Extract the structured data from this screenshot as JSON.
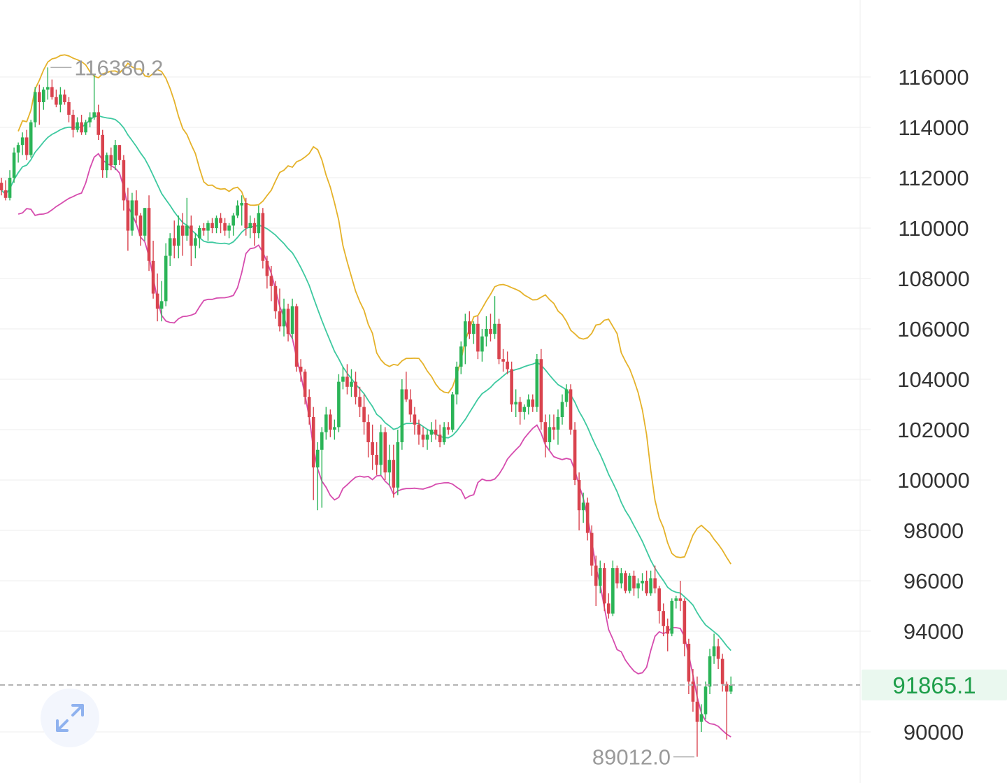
{
  "chart_data": {
    "type": "candlestick",
    "y_axis": {
      "position": "right",
      "ticks": [
        116000,
        114000,
        112000,
        110000,
        108000,
        106000,
        104000,
        102000,
        100000,
        98000,
        96000,
        94000,
        90000
      ],
      "ylim": [
        88300,
        118300
      ]
    },
    "high_label": "116380.2",
    "high_value": 116380.2,
    "low_label": "89012.0",
    "low_value": 89012.0,
    "last_price_label": "91865.1",
    "last_price": 91865.1,
    "colors": {
      "up": "#2bb457",
      "down": "#d9434e",
      "upper_band": "#e5b22a",
      "middle_band": "#3ec9a0",
      "lower_band": "#d64cae",
      "last_price_bg": "#eaf8ef",
      "last_price_text": "#1e9e4a"
    },
    "candles": [
      [
        111800,
        112000,
        111300,
        111500
      ],
      [
        111500,
        111900,
        111100,
        111200
      ],
      [
        111200,
        112300,
        111100,
        112000
      ],
      [
        112000,
        113200,
        111800,
        113000
      ],
      [
        113000,
        113400,
        112600,
        113300
      ],
      [
        113300,
        113800,
        112900,
        113600
      ],
      [
        113600,
        113900,
        112700,
        112900
      ],
      [
        112900,
        114300,
        112800,
        114200
      ],
      [
        114200,
        115600,
        114000,
        115400
      ],
      [
        115400,
        115700,
        114100,
        115000
      ],
      [
        115000,
        115600,
        114700,
        115500
      ],
      [
        115500,
        116380.2,
        115100,
        115600
      ],
      [
        115600,
        115900,
        115100,
        115200
      ],
      [
        115200,
        115500,
        114800,
        114900
      ],
      [
        114900,
        115600,
        114600,
        115300
      ],
      [
        115300,
        115500,
        114900,
        115000
      ],
      [
        115000,
        115200,
        114200,
        114500
      ],
      [
        114500,
        114700,
        113600,
        113900
      ],
      [
        113900,
        114400,
        113800,
        114200
      ],
      [
        114200,
        114500,
        113700,
        113800
      ],
      [
        113800,
        114300,
        113700,
        114200
      ],
      [
        114200,
        114600,
        114000,
        114400
      ],
      [
        114400,
        116100,
        114300,
        114600
      ],
      [
        114600,
        114900,
        113500,
        113700
      ],
      [
        113700,
        113900,
        112000,
        112300
      ],
      [
        112300,
        113000,
        112000,
        112900
      ],
      [
        112900,
        113200,
        112300,
        112500
      ],
      [
        112500,
        113500,
        112300,
        113300
      ],
      [
        113300,
        113300,
        112500,
        112700
      ],
      [
        112700,
        112900,
        110700,
        111100
      ],
      [
        111100,
        111600,
        109100,
        109900
      ],
      [
        109900,
        111400,
        109700,
        111100
      ],
      [
        111100,
        111500,
        110200,
        110500
      ],
      [
        110500,
        110600,
        109300,
        109700
      ],
      [
        109700,
        110800,
        109500,
        110800
      ],
      [
        110800,
        111300,
        108300,
        108700
      ],
      [
        108700,
        109500,
        107200,
        107400
      ],
      [
        107400,
        108200,
        106300,
        106800
      ],
      [
        106800,
        107900,
        106300,
        107100
      ],
      [
        107100,
        109400,
        106900,
        108900
      ],
      [
        108900,
        109800,
        108500,
        109600
      ],
      [
        109600,
        110300,
        108800,
        109300
      ],
      [
        109300,
        110500,
        108800,
        110100
      ],
      [
        110100,
        110600,
        108900,
        109700
      ],
      [
        109700,
        111200,
        109500,
        110100
      ],
      [
        110100,
        110500,
        108500,
        109300
      ],
      [
        109300,
        109800,
        108800,
        109600
      ],
      [
        109600,
        110100,
        109200,
        110000
      ],
      [
        110000,
        110200,
        109700,
        109900
      ],
      [
        109900,
        110300,
        109500,
        110200
      ],
      [
        110200,
        110400,
        109800,
        110000
      ],
      [
        110000,
        110500,
        109800,
        110400
      ],
      [
        110400,
        110600,
        109800,
        110200
      ],
      [
        110200,
        110400,
        109700,
        109900
      ],
      [
        109900,
        110200,
        109600,
        110100
      ],
      [
        110100,
        110600,
        109700,
        110500
      ],
      [
        110500,
        111100,
        110400,
        110900
      ],
      [
        110900,
        111300,
        110100,
        111000
      ],
      [
        111000,
        111200,
        109700,
        110000
      ],
      [
        110000,
        110500,
        109600,
        110200
      ],
      [
        110200,
        110400,
        109300,
        109800
      ],
      [
        109800,
        110900,
        109600,
        110600
      ],
      [
        110600,
        110800,
        108400,
        108700
      ],
      [
        108700,
        108900,
        107600,
        108100
      ],
      [
        108100,
        108500,
        107100,
        107700
      ],
      [
        107700,
        107900,
        106400,
        106700
      ],
      [
        106700,
        107600,
        105900,
        106100
      ],
      [
        106100,
        107200,
        105700,
        106800
      ],
      [
        106800,
        107000,
        105500,
        105800
      ],
      [
        105800,
        107200,
        105600,
        106900
      ],
      [
        106900,
        107000,
        104300,
        104500
      ],
      [
        104500,
        104800,
        103900,
        104300
      ],
      [
        104300,
        104400,
        103000,
        103300
      ],
      [
        103300,
        103600,
        102200,
        102500
      ],
      [
        102500,
        102900,
        99200,
        100500
      ],
      [
        100500,
        101500,
        98800,
        101200
      ],
      [
        101200,
        102100,
        98900,
        101900
      ],
      [
        101900,
        102900,
        101600,
        102600
      ],
      [
        102600,
        102800,
        101700,
        102000
      ],
      [
        102000,
        102400,
        101600,
        102100
      ],
      [
        102100,
        104200,
        101900,
        103900
      ],
      [
        103900,
        104500,
        103600,
        104100
      ],
      [
        104100,
        104600,
        103400,
        103700
      ],
      [
        103700,
        104400,
        103300,
        103900
      ],
      [
        103900,
        104300,
        103000,
        103300
      ],
      [
        103300,
        103700,
        102500,
        102900
      ],
      [
        102900,
        103400,
        101800,
        102300
      ],
      [
        102300,
        102600,
        100900,
        101500
      ],
      [
        101500,
        102200,
        100400,
        101000
      ],
      [
        101000,
        101500,
        100200,
        100600
      ],
      [
        100600,
        102200,
        100200,
        101900
      ],
      [
        101900,
        102100,
        100000,
        100300
      ],
      [
        100300,
        101400,
        99800,
        100800
      ],
      [
        100800,
        101400,
        99300,
        99700
      ],
      [
        99700,
        102000,
        99400,
        101500
      ],
      [
        101500,
        104000,
        101200,
        103600
      ],
      [
        103600,
        104300,
        103100,
        103200
      ],
      [
        103200,
        103600,
        102300,
        102600
      ],
      [
        102600,
        102900,
        101800,
        102200
      ],
      [
        102200,
        102400,
        101400,
        101800
      ],
      [
        101800,
        102100,
        101300,
        101600
      ],
      [
        101600,
        102000,
        101200,
        101800
      ],
      [
        101800,
        102300,
        101500,
        102000
      ],
      [
        102000,
        102400,
        101600,
        101800
      ],
      [
        101800,
        102200,
        101300,
        101500
      ],
      [
        101500,
        102300,
        101400,
        102100
      ],
      [
        102100,
        102300,
        101800,
        102000
      ],
      [
        102000,
        103500,
        101900,
        103400
      ],
      [
        103400,
        104700,
        103000,
        104500
      ],
      [
        104500,
        105500,
        104200,
        105300
      ],
      [
        105300,
        106600,
        104600,
        106300
      ],
      [
        106300,
        106700,
        105600,
        105800
      ],
      [
        105800,
        106300,
        105400,
        106200
      ],
      [
        106200,
        106500,
        104800,
        105100
      ],
      [
        105100,
        106000,
        104700,
        105700
      ],
      [
        105700,
        106500,
        105300,
        106000
      ],
      [
        106000,
        106600,
        105500,
        105800
      ],
      [
        105800,
        107300,
        105600,
        106200
      ],
      [
        106200,
        106400,
        104600,
        104800
      ],
      [
        104800,
        105200,
        104300,
        104700
      ],
      [
        104700,
        105100,
        104200,
        104400
      ],
      [
        104400,
        104700,
        102700,
        103000
      ],
      [
        103000,
        103600,
        102500,
        103100
      ],
      [
        103100,
        103300,
        102200,
        102700
      ],
      [
        102700,
        103000,
        102400,
        102900
      ],
      [
        102900,
        103400,
        102600,
        103200
      ],
      [
        103200,
        103400,
        102700,
        102900
      ],
      [
        102900,
        105000,
        102700,
        104800
      ],
      [
        104800,
        105200,
        102000,
        102300
      ],
      [
        102300,
        102600,
        100900,
        101500
      ],
      [
        101500,
        102600,
        101200,
        102100
      ],
      [
        102100,
        102600,
        101600,
        102000
      ],
      [
        102000,
        102800,
        101400,
        102500
      ],
      [
        102500,
        103400,
        102200,
        103100
      ],
      [
        103100,
        103800,
        102900,
        103600
      ],
      [
        103600,
        103800,
        101800,
        102000
      ],
      [
        102000,
        102300,
        99800,
        100000
      ],
      [
        100000,
        100300,
        98000,
        98800
      ],
      [
        98800,
        99500,
        98300,
        99100
      ],
      [
        99100,
        99300,
        97600,
        97900
      ],
      [
        97900,
        98200,
        96200,
        96600
      ],
      [
        96600,
        97000,
        95000,
        95800
      ],
      [
        95800,
        96800,
        95500,
        96500
      ],
      [
        96500,
        96700,
        94800,
        95100
      ],
      [
        95100,
        95500,
        94500,
        94700
      ],
      [
        94700,
        96800,
        94600,
        96500
      ],
      [
        96500,
        96600,
        95700,
        95900
      ],
      [
        95900,
        96500,
        95700,
        96300
      ],
      [
        96300,
        96400,
        95500,
        95600
      ],
      [
        95600,
        96300,
        95500,
        96200
      ],
      [
        96200,
        96400,
        95400,
        95700
      ],
      [
        95700,
        96100,
        95300,
        95900
      ],
      [
        95900,
        96300,
        95600,
        96000
      ],
      [
        96000,
        96400,
        95400,
        95500
      ],
      [
        95500,
        96400,
        95400,
        96100
      ],
      [
        96100,
        96600,
        95500,
        95700
      ],
      [
        95700,
        95800,
        94300,
        94800
      ],
      [
        94800,
        95100,
        93800,
        94200
      ],
      [
        94200,
        94500,
        93200,
        93900
      ],
      [
        93900,
        95300,
        93800,
        95200
      ],
      [
        95200,
        95400,
        94900,
        95300
      ],
      [
        95300,
        96000,
        94800,
        95200
      ],
      [
        95200,
        95300,
        93000,
        93500
      ],
      [
        93500,
        93700,
        91500,
        92000
      ],
      [
        92000,
        92500,
        90800,
        91200
      ],
      [
        91200,
        92200,
        89012.0,
        90400
      ],
      [
        90400,
        91100,
        90000,
        90700
      ],
      [
        90700,
        92000,
        90500,
        91800
      ],
      [
        91800,
        93300,
        91500,
        93000
      ],
      [
        93000,
        93900,
        92700,
        93400
      ],
      [
        93400,
        93700,
        92500,
        92900
      ],
      [
        92900,
        93100,
        91600,
        91900
      ],
      [
        91900,
        92000,
        89700,
        91600
      ],
      [
        91600,
        92200,
        91500,
        91865.1
      ]
    ]
  },
  "ui": {
    "expand_icon": "expand-arrows-icon"
  }
}
